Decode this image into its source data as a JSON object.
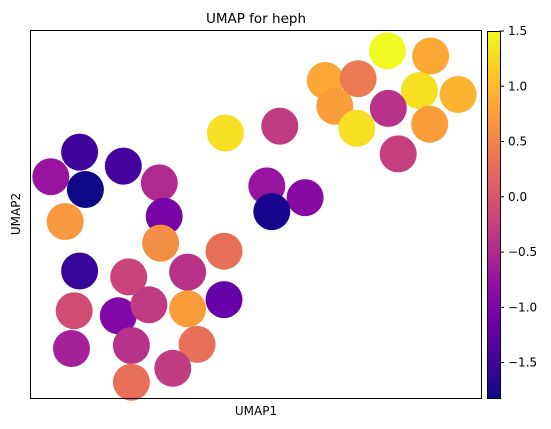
{
  "chart_data": {
    "type": "scatter",
    "title": "UMAP for heph",
    "xlabel": "UMAP1",
    "ylabel": "UMAP2",
    "xlim": [
      0,
      100
    ],
    "ylim": [
      0,
      100
    ],
    "grid": false,
    "xticks": false,
    "yticks": false,
    "colorbar": {
      "colormap": "plasma",
      "min": -1.82,
      "max": 1.5,
      "ticks": [
        1.5,
        1.0,
        0.5,
        0.0,
        -0.5,
        -1.0,
        -1.5
      ],
      "tick_labels": [
        "1.5",
        "1.0",
        "0.5",
        "0.0",
        "−0.5",
        "−1.0",
        "−1.5"
      ]
    },
    "points": [
      {
        "x": 79.2,
        "y": 94.6,
        "value": 1.5
      },
      {
        "x": 88.8,
        "y": 93.2,
        "value": 0.85
      },
      {
        "x": 65.4,
        "y": 86.5,
        "value": 0.85
      },
      {
        "x": 72.7,
        "y": 87.0,
        "value": 0.4
      },
      {
        "x": 86.3,
        "y": 83.8,
        "value": 1.3
      },
      {
        "x": 94.9,
        "y": 82.7,
        "value": 0.95
      },
      {
        "x": 67.5,
        "y": 79.5,
        "value": 0.75
      },
      {
        "x": 79.4,
        "y": 78.9,
        "value": -0.4
      },
      {
        "x": 72.4,
        "y": 73.5,
        "value": 1.3
      },
      {
        "x": 88.6,
        "y": 74.6,
        "value": 0.75
      },
      {
        "x": 43.2,
        "y": 72.2,
        "value": 1.3
      },
      {
        "x": 55.3,
        "y": 74.1,
        "value": -0.3
      },
      {
        "x": 81.6,
        "y": 66.5,
        "value": -0.25
      },
      {
        "x": 10.8,
        "y": 67.0,
        "value": -1.5
      },
      {
        "x": 20.5,
        "y": 63.2,
        "value": -1.45
      },
      {
        "x": 4.4,
        "y": 60.3,
        "value": -0.75
      },
      {
        "x": 12.1,
        "y": 56.8,
        "value": -1.8
      },
      {
        "x": 28.5,
        "y": 58.6,
        "value": -0.5
      },
      {
        "x": 52.4,
        "y": 57.8,
        "value": -0.75
      },
      {
        "x": 60.9,
        "y": 54.6,
        "value": -0.9
      },
      {
        "x": 7.6,
        "y": 48.1,
        "value": 0.7
      },
      {
        "x": 29.6,
        "y": 49.5,
        "value": -1.05
      },
      {
        "x": 53.5,
        "y": 50.8,
        "value": -1.75
      },
      {
        "x": 28.8,
        "y": 42.2,
        "value": 0.6
      },
      {
        "x": 42.9,
        "y": 40.0,
        "value": 0.3
      },
      {
        "x": 10.8,
        "y": 34.6,
        "value": -1.55
      },
      {
        "x": 21.7,
        "y": 33.0,
        "value": -0.2
      },
      {
        "x": 34.8,
        "y": 34.3,
        "value": -0.4
      },
      {
        "x": 9.6,
        "y": 23.8,
        "value": -0.1
      },
      {
        "x": 19.4,
        "y": 22.4,
        "value": -0.95
      },
      {
        "x": 26.2,
        "y": 25.4,
        "value": -0.3
      },
      {
        "x": 34.8,
        "y": 24.3,
        "value": 0.75
      },
      {
        "x": 42.9,
        "y": 26.8,
        "value": -1.2
      },
      {
        "x": 9.0,
        "y": 13.5,
        "value": -0.6
      },
      {
        "x": 22.3,
        "y": 14.3,
        "value": -0.4
      },
      {
        "x": 36.9,
        "y": 14.6,
        "value": 0.3
      },
      {
        "x": 31.5,
        "y": 8.1,
        "value": -0.3
      },
      {
        "x": 22.3,
        "y": 4.3,
        "value": 0.3
      }
    ]
  }
}
